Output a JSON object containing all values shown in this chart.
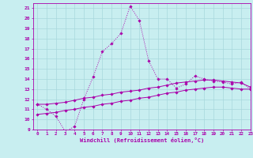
{
  "xlabel": "Windchill (Refroidissement éolien,°C)",
  "xlim": [
    -0.5,
    23
  ],
  "ylim": [
    9,
    21.5
  ],
  "yticks": [
    9,
    10,
    11,
    12,
    13,
    14,
    15,
    16,
    17,
    18,
    19,
    20,
    21
  ],
  "xticks": [
    0,
    1,
    2,
    3,
    4,
    5,
    6,
    7,
    8,
    9,
    10,
    11,
    12,
    13,
    14,
    15,
    16,
    17,
    18,
    19,
    20,
    21,
    22,
    23
  ],
  "bg_color": "#c8eef0",
  "grid_color": "#a8d8dc",
  "line_color": "#aa00aa",
  "line1_x": [
    0,
    1,
    2,
    3,
    4,
    5,
    6,
    7,
    8,
    9,
    10,
    11,
    12,
    13,
    14,
    15,
    16,
    17,
    18,
    19,
    20,
    21,
    22,
    23
  ],
  "line1_y": [
    11.5,
    11.0,
    10.3,
    8.8,
    9.3,
    12.0,
    14.2,
    16.7,
    17.5,
    18.5,
    21.2,
    19.8,
    15.8,
    14.0,
    14.0,
    13.1,
    13.5,
    14.3,
    14.0,
    13.8,
    13.7,
    13.5,
    13.7,
    13.0
  ],
  "line2_x": [
    0,
    1,
    2,
    3,
    4,
    5,
    6,
    7,
    8,
    9,
    10,
    11,
    12,
    13,
    14,
    15,
    16,
    17,
    18,
    19,
    20,
    21,
    22,
    23
  ],
  "line2_y": [
    11.5,
    11.5,
    11.6,
    11.7,
    11.9,
    12.1,
    12.2,
    12.4,
    12.5,
    12.7,
    12.8,
    12.9,
    13.1,
    13.2,
    13.4,
    13.6,
    13.7,
    13.8,
    13.9,
    13.9,
    13.8,
    13.7,
    13.6,
    13.2
  ],
  "line3_x": [
    0,
    1,
    2,
    3,
    4,
    5,
    6,
    7,
    8,
    9,
    10,
    11,
    12,
    13,
    14,
    15,
    16,
    17,
    18,
    19,
    20,
    21,
    22,
    23
  ],
  "line3_y": [
    10.5,
    10.6,
    10.7,
    10.9,
    11.0,
    11.2,
    11.3,
    11.5,
    11.6,
    11.8,
    11.9,
    12.1,
    12.2,
    12.4,
    12.6,
    12.7,
    12.9,
    13.0,
    13.1,
    13.2,
    13.2,
    13.1,
    13.0,
    13.0
  ]
}
